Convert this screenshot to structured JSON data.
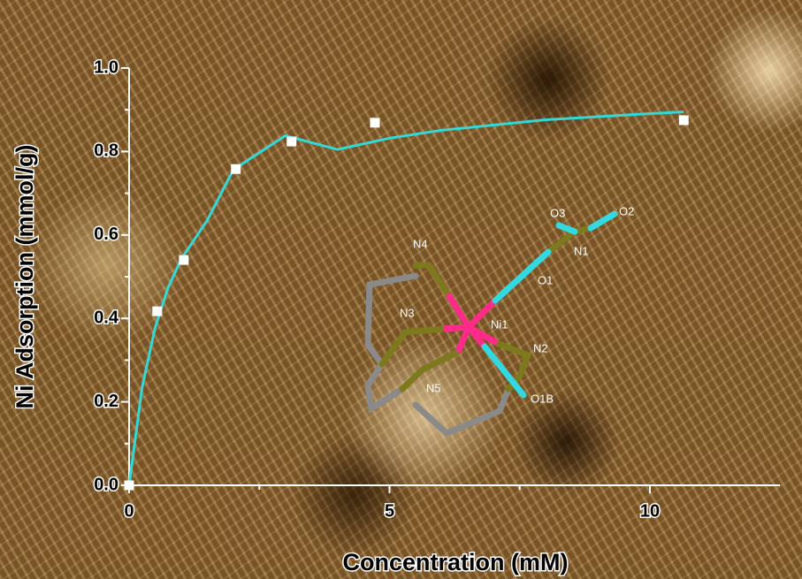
{
  "chart_data": {
    "type": "scatter",
    "xlabel": "Concentration (mM)",
    "ylabel": "Ni Adsorption (mmol/g)",
    "xlim": [
      0,
      12.5
    ],
    "ylim": [
      0,
      1.0
    ],
    "xticks": [
      0,
      5,
      10
    ],
    "xminorticks": [
      2.5,
      7.5
    ],
    "yticks": [
      {
        "value": 0,
        "label": "0.0"
      },
      0.2,
      0.4,
      0.6,
      0.8,
      {
        "value": 1.0,
        "label": "1.0"
      }
    ],
    "yminorticks": [
      0.1,
      0.3,
      0.5,
      0.7,
      0.9
    ],
    "series": [
      {
        "type": "scatter",
        "color": "#ffffff",
        "x": [
          0,
          0.54,
          1.05,
          2.05,
          3.12,
          4.72,
          10.65
        ],
        "values": [
          0,
          0.417,
          0.54,
          0.758,
          0.824,
          0.869,
          0.875
        ]
      },
      {
        "type": "line",
        "color": "#33d8d8",
        "x": [
          0,
          0.25,
          0.5,
          0.75,
          1,
          1.5,
          2,
          3,
          4,
          5,
          6,
          8,
          10,
          10.65
        ],
        "values": [
          0,
          0.235,
          0.378,
          0.474,
          0.542,
          0.635,
          0.756,
          0.838,
          0.805,
          0.832,
          0.851,
          0.876,
          0.891,
          0.895
        ]
      }
    ],
    "annotations": [
      "O3",
      "O2",
      "N4",
      "N1",
      "O1",
      "N3",
      "Ni1",
      "N2",
      "N5",
      "O1B"
    ]
  }
}
